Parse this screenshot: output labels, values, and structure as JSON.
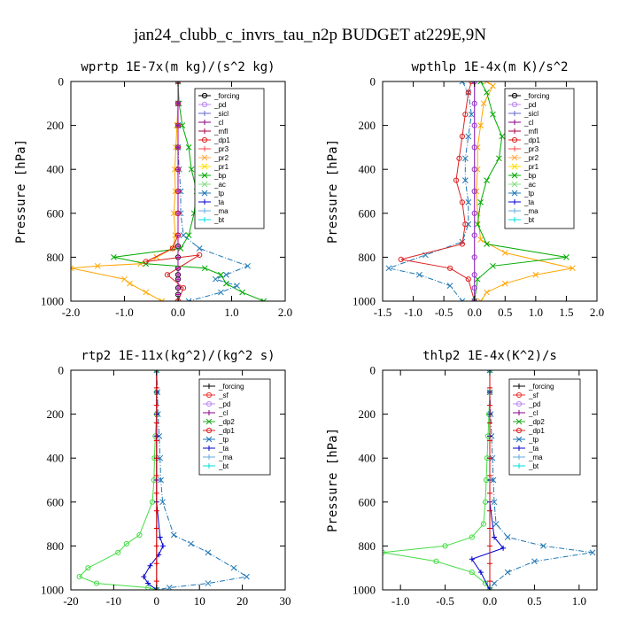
{
  "figure_title": "jan24_clubb_c_invrs_tau_n2p  BUDGET at229E,9N",
  "chart_data": [
    {
      "type": "line",
      "title": "wprtp  1E-7x(m kg)/(s^2 kg)",
      "ylabel": "Pressure [hPa]",
      "xlim": [
        -2,
        2
      ],
      "ylim": [
        1000,
        0
      ],
      "xticks": [
        "-2.0",
        "-1.0",
        "0.0",
        "1.0",
        "2.0"
      ],
      "yticks": [
        "0",
        "200",
        "400",
        "600",
        "800",
        "1000"
      ],
      "legend": [
        "_forcing",
        "_pd",
        "_sicl",
        "_cl",
        "_mfl",
        "_dp1",
        "_pr3",
        "_pr2",
        "_pr1",
        "_bp",
        "_ac",
        "_tp",
        "_ta",
        "_ma",
        "_bt"
      ],
      "series": [
        {
          "name": "_forcing",
          "color": "#000000",
          "marker": "o",
          "dash": "",
          "x": [
            0,
            0,
            0,
            0,
            0,
            0,
            0,
            0,
            0,
            0,
            0,
            0,
            0,
            0,
            0,
            0
          ],
          "y": [
            0,
            100,
            200,
            300,
            400,
            500,
            600,
            700,
            750,
            800,
            850,
            880,
            900,
            940,
            970,
            1000
          ]
        },
        {
          "name": "_pr1",
          "color": "#ffa500",
          "marker": "x",
          "dash": "",
          "x": [
            0,
            0,
            -0.02,
            -0.04,
            -0.06,
            -0.05,
            -0.08,
            -0.05,
            -0.1,
            -0.4,
            -0.7,
            -1.5,
            -2.0,
            -1.0,
            -0.9,
            -0.6,
            -0.3
          ],
          "y": [
            0,
            100,
            200,
            300,
            400,
            500,
            600,
            700,
            760,
            800,
            830,
            840,
            850,
            900,
            920,
            960,
            1000
          ]
        },
        {
          "name": "_bp",
          "color": "#00aa00",
          "marker": "x",
          "dash": "",
          "x": [
            0,
            0.02,
            0.08,
            0.2,
            0.25,
            0.35,
            0.3,
            0.2,
            0.05,
            -1.2,
            -0.6,
            0.5,
            0.8,
            0.9,
            1.2,
            1.6
          ],
          "y": [
            0,
            100,
            200,
            300,
            400,
            500,
            600,
            700,
            760,
            800,
            830,
            850,
            880,
            920,
            960,
            1000
          ]
        },
        {
          "name": "_tp",
          "color": "#1f77b4",
          "marker": "x",
          "dash": "6,2,1,2",
          "x": [
            0,
            0,
            0,
            0,
            0.02,
            0.05,
            0.05,
            0.1,
            0.4,
            1.3,
            0.9,
            0.7,
            1.1,
            0.8,
            0.2
          ],
          "y": [
            0,
            100,
            200,
            300,
            400,
            500,
            600,
            700,
            760,
            840,
            880,
            900,
            930,
            960,
            1000
          ]
        },
        {
          "name": "_dp1",
          "color": "#dd2222",
          "marker": "o",
          "dash": "",
          "x": [
            0,
            0,
            0,
            0,
            0,
            0,
            0,
            0,
            -0.1,
            -0.6,
            0.4,
            -0.2,
            0.1,
            0
          ],
          "y": [
            0,
            100,
            200,
            300,
            400,
            500,
            600,
            700,
            760,
            820,
            790,
            880,
            940,
            1000
          ]
        },
        {
          "name": "_ma",
          "color": "#aa00aa",
          "marker": "+",
          "dash": "",
          "x": [
            0,
            0,
            0,
            0,
            0,
            0,
            0,
            0,
            0,
            0,
            0,
            0,
            0,
            0,
            0,
            0
          ],
          "y": [
            0,
            100,
            200,
            300,
            400,
            500,
            600,
            700,
            750,
            800,
            850,
            880,
            900,
            940,
            970,
            1000
          ]
        }
      ]
    },
    {
      "type": "line",
      "title": "wpthlp  1E-4x(m K)/s^2",
      "ylabel": "Pressure [hPa]",
      "xlim": [
        -1.5,
        2
      ],
      "ylim": [
        1000,
        0
      ],
      "xticks": [
        "-1.5",
        "-1.0",
        "-0.5",
        "0.0",
        "0.5",
        "1.0",
        "1.5",
        "2.0"
      ],
      "yticks": [
        "0",
        "200",
        "400",
        "600",
        "800",
        "1000"
      ],
      "legend": [
        "_forcing",
        "_pd",
        "_sicl",
        "_cl",
        "_mfl",
        "_dp1",
        "_pr3",
        "_pr2",
        "_pr1",
        "_bp",
        "_ac",
        "_tp",
        "_ta",
        "_ma",
        "_bt"
      ],
      "series": [
        {
          "name": "_pr1",
          "color": "#ffa500",
          "marker": "x",
          "dash": "",
          "x": [
            0.2,
            0.3,
            0.15,
            0.1,
            0.05,
            0.05,
            0.03,
            0.05,
            0.1,
            0.5,
            1.6,
            1.0,
            0.5,
            0.2,
            0.1
          ],
          "y": [
            0,
            20,
            100,
            200,
            300,
            400,
            500,
            600,
            720,
            780,
            850,
            880,
            920,
            960,
            1000
          ]
        },
        {
          "name": "_bp",
          "color": "#00aa00",
          "marker": "x",
          "dash": "",
          "x": [
            0.1,
            0.2,
            0.3,
            0.45,
            0.4,
            0.2,
            0.1,
            0.05,
            0.2,
            1.5,
            0.3,
            0.05,
            0
          ],
          "y": [
            0,
            50,
            150,
            250,
            350,
            450,
            550,
            650,
            740,
            800,
            840,
            900,
            1000
          ]
        },
        {
          "name": "_tp",
          "color": "#1f77b4",
          "marker": "x",
          "dash": "6,2,1,2",
          "x": [
            -0.2,
            -0.1,
            -0.05,
            -0.1,
            -0.15,
            -0.15,
            -0.1,
            -0.1,
            -0.2,
            -0.8,
            -1.4,
            -0.9,
            -0.4,
            -0.2
          ],
          "y": [
            0,
            50,
            150,
            250,
            350,
            450,
            550,
            650,
            730,
            790,
            850,
            880,
            930,
            1000
          ]
        },
        {
          "name": "_dp1",
          "color": "#dd2222",
          "marker": "o",
          "dash": "",
          "x": [
            -0.05,
            -0.1,
            -0.15,
            -0.2,
            -0.25,
            -0.3,
            -0.2,
            -0.15,
            -0.2,
            -1.2,
            -0.4,
            -0.1,
            0
          ],
          "y": [
            0,
            50,
            150,
            250,
            350,
            450,
            550,
            650,
            740,
            810,
            850,
            900,
            1000
          ]
        },
        {
          "name": "_forcing",
          "color": "#9933cc",
          "marker": "o",
          "dash": "",
          "x": [
            0,
            0,
            0,
            0,
            0,
            0,
            0,
            0,
            0,
            0,
            0,
            0
          ],
          "y": [
            0,
            100,
            200,
            300,
            400,
            500,
            600,
            700,
            800,
            880,
            940,
            1000
          ]
        }
      ]
    },
    {
      "type": "line",
      "title": "rtp2  1E-11x(kg^2)/(kg^2 s)",
      "ylabel": "",
      "xlim": [
        -20,
        30
      ],
      "ylim": [
        1000,
        0
      ],
      "xticks": [
        "-20",
        "-10",
        "0",
        "10",
        "20",
        "30"
      ],
      "yticks": [
        "0",
        "200",
        "400",
        "600",
        "800",
        "1000"
      ],
      "legend": [
        "_forcing",
        "_sf",
        "_pd",
        "_cl",
        "_dp2",
        "_dp1",
        "_tp",
        "_ta",
        "_ma",
        "_bt"
      ],
      "series": [
        {
          "name": "_dp1",
          "color": "#44dd44",
          "marker": "o",
          "dash": "",
          "x": [
            0,
            0,
            0,
            -0.3,
            -0.5,
            -0.6,
            -1,
            -4,
            -7,
            -9,
            -16,
            -18,
            -14,
            -2,
            0
          ],
          "y": [
            0,
            100,
            200,
            300,
            400,
            500,
            600,
            750,
            790,
            830,
            900,
            940,
            970,
            990,
            1000
          ]
        },
        {
          "name": "_tp",
          "color": "#1f77b4",
          "marker": "x",
          "dash": "6,2,1,2",
          "x": [
            0,
            0.2,
            0.3,
            0.6,
            0.8,
            1,
            1.4,
            4,
            8,
            12,
            18,
            21,
            12,
            3,
            0
          ],
          "y": [
            0,
            100,
            200,
            300,
            400,
            500,
            600,
            750,
            790,
            830,
            900,
            940,
            970,
            990,
            1000
          ]
        },
        {
          "name": "_ta",
          "color": "#0000cc",
          "marker": "+",
          "dash": "",
          "x": [
            0,
            0,
            0,
            0,
            0,
            0,
            0,
            0.8,
            1.5,
            0.5,
            -1.5,
            -3,
            -2,
            0
          ],
          "y": [
            0,
            100,
            200,
            300,
            400,
            500,
            600,
            760,
            800,
            840,
            890,
            940,
            970,
            1000
          ]
        },
        {
          "name": "_forcing",
          "color": "#dd0000",
          "marker": "+",
          "dash": "",
          "x": [
            0,
            0,
            0,
            0,
            0,
            0,
            0,
            0,
            0,
            0,
            0,
            0,
            0,
            0
          ],
          "y": [
            0,
            80,
            160,
            240,
            320,
            400,
            480,
            560,
            640,
            720,
            800,
            880,
            960,
            1000
          ]
        }
      ]
    },
    {
      "type": "line",
      "title": "thlp2  1E-4x(K^2)/s",
      "ylabel": "Pressure [hPa]",
      "xlim": [
        -1.2,
        1.2
      ],
      "ylim": [
        1000,
        0
      ],
      "xticks": [
        "-1.0",
        "-0.5",
        "0.0",
        "0.5",
        "1.0"
      ],
      "yticks": [
        "0",
        "200",
        "400",
        "600",
        "800",
        "1000"
      ],
      "legend": [
        "_forcing",
        "_sf",
        "_pd",
        "_cl",
        "_dp2",
        "_dp1",
        "_tp",
        "_ta",
        "_ma",
        "_bt"
      ],
      "series": [
        {
          "name": "_dp1",
          "color": "#44dd44",
          "marker": "o",
          "dash": "",
          "x": [
            0,
            0,
            -0.01,
            -0.02,
            -0.03,
            -0.04,
            -0.05,
            -0.07,
            -0.2,
            -0.5,
            -1.2,
            -0.6,
            -0.2,
            -0.05,
            0
          ],
          "y": [
            0,
            100,
            200,
            300,
            400,
            500,
            600,
            700,
            760,
            800,
            830,
            870,
            920,
            970,
            1000
          ]
        },
        {
          "name": "_tp",
          "color": "#1f77b4",
          "marker": "x",
          "dash": "6,2,1,2",
          "x": [
            0,
            0,
            0.01,
            0.02,
            0.03,
            0.04,
            0.05,
            0.07,
            0.2,
            0.6,
            1.15,
            0.5,
            0.2,
            0.05,
            0
          ],
          "y": [
            0,
            100,
            200,
            300,
            400,
            500,
            600,
            700,
            760,
            800,
            830,
            870,
            920,
            970,
            1000
          ]
        },
        {
          "name": "_ta",
          "color": "#0000cc",
          "marker": "+",
          "dash": "",
          "x": [
            0,
            0,
            0,
            0,
            0,
            0,
            0,
            0.05,
            0.15,
            -0.2,
            -0.1,
            0
          ],
          "y": [
            0,
            100,
            200,
            300,
            400,
            500,
            600,
            760,
            810,
            860,
            920,
            1000
          ]
        },
        {
          "name": "_forcing",
          "color": "#dd0000",
          "marker": "+",
          "dash": "",
          "x": [
            0,
            0,
            0,
            0,
            0,
            0,
            0,
            0,
            0,
            0,
            0,
            0,
            0,
            0
          ],
          "y": [
            0,
            80,
            160,
            240,
            320,
            400,
            480,
            560,
            640,
            720,
            800,
            880,
            960,
            1000
          ]
        }
      ]
    }
  ],
  "colors": {
    "_forcing": "#000000",
    "_pd": "#bb88ee",
    "_sicl": "#6666cc",
    "_cl": "#880088",
    "_mfl": "#aa0044",
    "_dp1": "#dd2222",
    "_pr3": "#ff4444",
    "_pr2": "#ffaa44",
    "_pr1": "#ffdd00",
    "_bp": "#00aa00",
    "_ac": "#88dd88",
    "_tp": "#1f77b4",
    "_ta": "#0000cc",
    "_ma": "#66aadd",
    "_bt": "#00dddd",
    "_sf": "#ee3333",
    "_dp2": "#22aa22"
  }
}
